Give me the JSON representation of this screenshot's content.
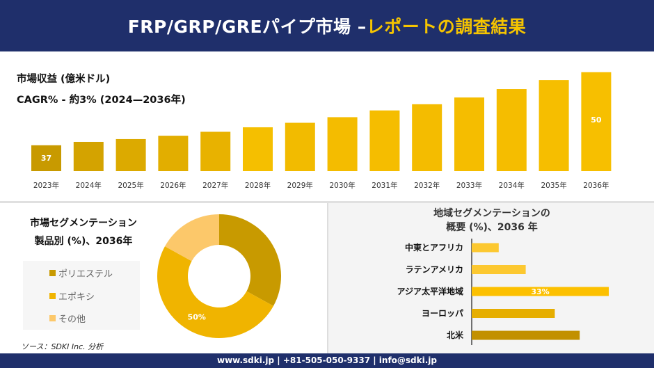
{
  "header": {
    "title_main": "FRP/GRP/GREパイプ市場 –",
    "title_accent": "レポートの調査結果"
  },
  "colors": {
    "header_bg": "#1f2f6b",
    "accent": "#f5c400",
    "polyester": "#c89a00",
    "epoxy": "#f0b400",
    "other": "#fcc86a"
  },
  "chart_data": [
    {
      "type": "bar",
      "title": "市場収益 (億米ドル)",
      "subtitle": "CAGR% - 約3% (2024—2036年)",
      "categories": [
        "2023年",
        "2024年",
        "2025年",
        "2026年",
        "2027年",
        "2028年",
        "2029年",
        "2030年",
        "2031年",
        "2032年",
        "2033年",
        "2034年",
        "2035年",
        "2036年"
      ],
      "values": [
        37,
        37.6,
        38.1,
        38.7,
        39.4,
        40.2,
        41.0,
        42.0,
        43.2,
        44.3,
        45.5,
        47.0,
        48.6,
        50
      ],
      "data_labels": {
        "0": "37",
        "13": "50"
      }
    },
    {
      "type": "pie",
      "title": "市場セグメンテーション",
      "subtitle": "製品別 (%)、2036年",
      "labels": [
        "ポリエステル",
        "エポキシ",
        "その他"
      ],
      "values": [
        33,
        50,
        17
      ],
      "data_labels": {
        "1": "50%"
      }
    },
    {
      "type": "bar",
      "orientation": "horizontal",
      "title": "地域セグメンテーションの",
      "subtitle": "概要 (%)、2036 年",
      "categories": [
        "中東とアフリカ",
        "ラテンアメリカ",
        "アジア太平洋地域",
        "ヨーロッパ",
        "北米"
      ],
      "values": [
        6.5,
        13,
        33,
        20,
        26
      ],
      "data_labels": {
        "2": "33%"
      }
    }
  ],
  "source": "ソース：SDKI Inc. 分析",
  "footer": "www.sdki.jp | +81-505-050-9337 | info@sdki.jp"
}
